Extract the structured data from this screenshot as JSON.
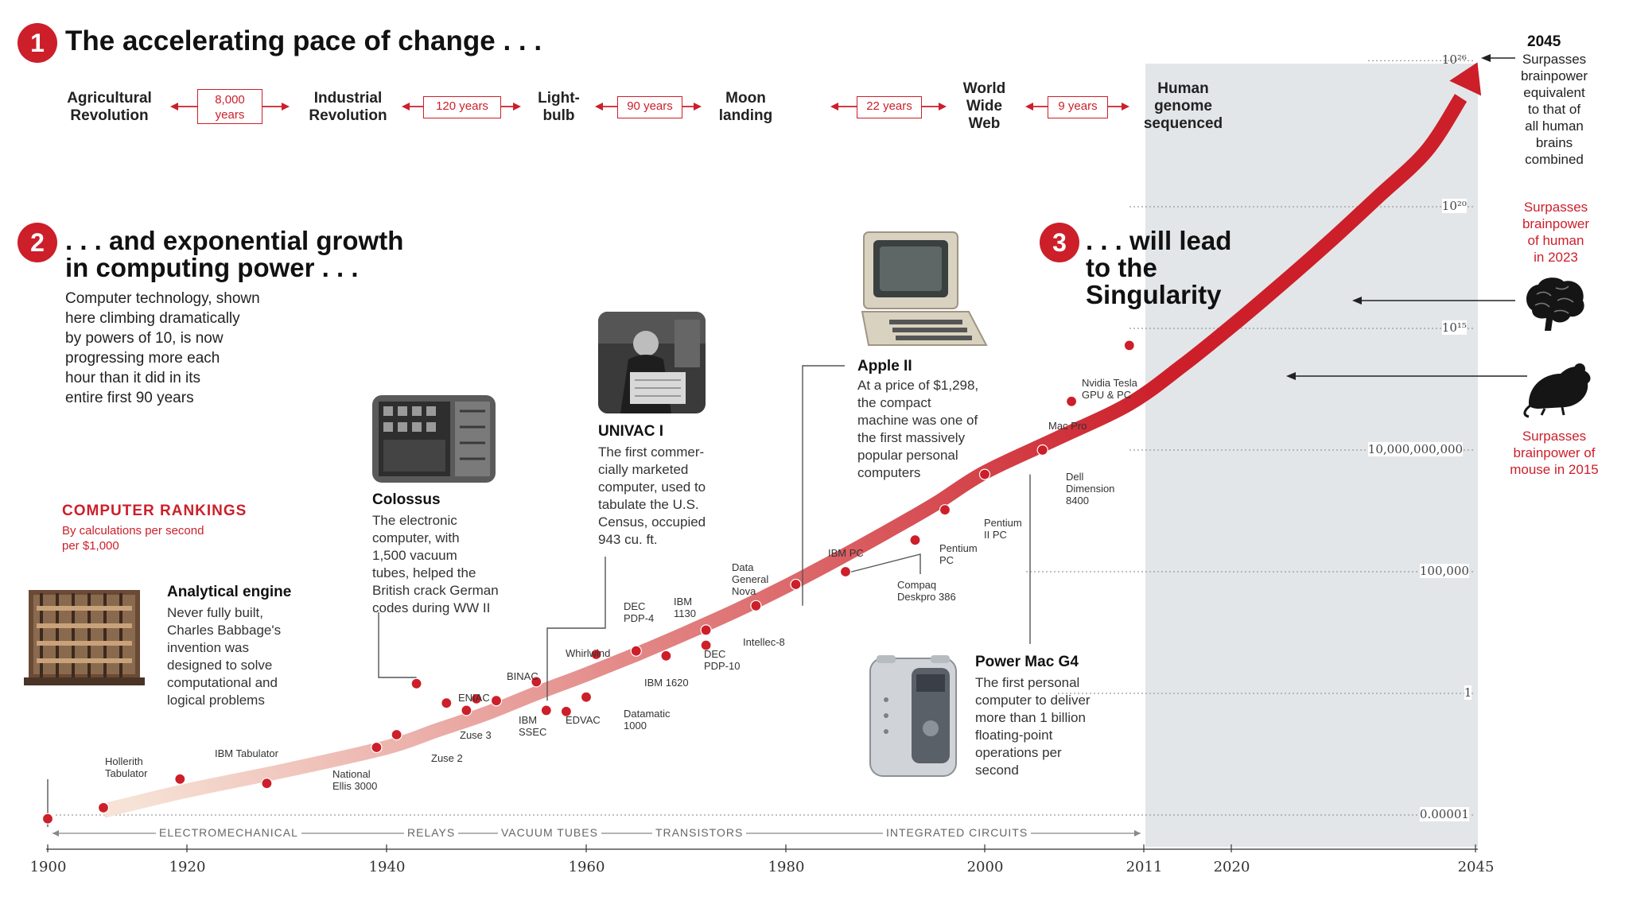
{
  "chart_data": {
    "type": "scatter",
    "title": "The accelerating pace of change ...",
    "xlabel": "",
    "ylabel": "By calculations per second per $1,000",
    "x_ticks": [
      "1900",
      "1920",
      "1940",
      "1960",
      "1980",
      "2000",
      "2011",
      "2020",
      "2045"
    ],
    "y_ticks": [
      {
        "label": "0.00001"
      },
      {
        "label": "1"
      },
      {
        "label": "100,000"
      },
      {
        "label": "10,000,000,000"
      },
      {
        "label": "10¹⁵"
      },
      {
        "label": "10²⁰"
      },
      {
        "label": "10²⁶"
      }
    ],
    "y_scale": "log",
    "ylim": [
      "0.00001",
      "1e26"
    ],
    "xlim": [
      1900,
      2045
    ],
    "grid": true,
    "points": [
      {
        "name": "",
        "year": 1900,
        "cps": 7e-06
      },
      {
        "name": "Hollerith Tabulator",
        "year": 1908,
        "cps": 2e-05
      },
      {
        "name": "IBM Tabulator",
        "year": 1919,
        "cps": 0.0003
      },
      {
        "name": "National Ellis 3000",
        "year": 1928,
        "cps": 0.0002
      },
      {
        "name": "Zuse 2",
        "year": 1939,
        "cps": 0.006
      },
      {
        "name": "Zuse 3",
        "year": 1941,
        "cps": 0.02
      },
      {
        "name": "Colossus",
        "year": 1943,
        "cps": 2.5
      },
      {
        "name": "ENIAC",
        "year": 1946,
        "cps": 0.4
      },
      {
        "name": "IBM SSEC",
        "year": 1948,
        "cps": 0.2
      },
      {
        "name": "BINAC",
        "year": 1949,
        "cps": 0.6
      },
      {
        "name": "UNIVAC I",
        "year": 1951,
        "cps": 0.5
      },
      {
        "name": "Whirlwind",
        "year": 1955,
        "cps": 3
      },
      {
        "name": "EDVAC",
        "year": 1956,
        "cps": 0.2
      },
      {
        "name": "Datamatic 1000",
        "year": 1958,
        "cps": 0.18
      },
      {
        "name": "IBM 1620",
        "year": 1960,
        "cps": 0.7
      },
      {
        "name": "DEC PDP-4",
        "year": 1961,
        "cps": 40
      },
      {
        "name": "IBM 1130",
        "year": 1965,
        "cps": 55
      },
      {
        "name": "DEC PDP-10",
        "year": 1968,
        "cps": 35
      },
      {
        "name": "Data General Nova",
        "year": 1972,
        "cps": 400
      },
      {
        "name": "Intellec-8",
        "year": 1972,
        "cps": 95
      },
      {
        "name": "Apple II",
        "year": 1977,
        "cps": 4000
      },
      {
        "name": "IBM PC",
        "year": 1981,
        "cps": 30000
      },
      {
        "name": "Compaq Deskpro 386",
        "year": 1986,
        "cps": 100000
      },
      {
        "name": "Pentium PC",
        "year": 1993,
        "cps": 2000000
      },
      {
        "name": "Pentium II PC",
        "year": 1996,
        "cps": 35000000
      },
      {
        "name": "Power Mac G4",
        "year": 2000,
        "cps": 1000000000
      },
      {
        "name": "Dell Dimension 8400",
        "year": 2004,
        "cps": 10000000000
      },
      {
        "name": "Mac Pro",
        "year": 2006,
        "cps": 1000000000000.0
      },
      {
        "name": "Nvidia Tesla GPU & PC",
        "year": 2010,
        "cps": 200000000000000.0
      }
    ],
    "labeled_points": [
      {
        "name": "Hollerith Tabulator",
        "lines": [
          "Hollerith",
          "Tabulator"
        ]
      },
      {
        "name": "IBM Tabulator",
        "lines": [
          "IBM Tabulator"
        ]
      },
      {
        "name": "National Ellis 3000",
        "lines": [
          "National",
          "Ellis 3000"
        ]
      },
      {
        "name": "Zuse 2",
        "lines": [
          "Zuse 2"
        ]
      },
      {
        "name": "Zuse 3",
        "lines": [
          "Zuse 3"
        ]
      },
      {
        "name": "ENIAC",
        "lines": [
          "ENIAC"
        ]
      },
      {
        "name": "IBM SSEC",
        "lines": [
          "IBM",
          "SSEC"
        ]
      },
      {
        "name": "BINAC",
        "lines": [
          "BINAC"
        ]
      },
      {
        "name": "Whirlwind",
        "lines": [
          "Whirlwind"
        ]
      },
      {
        "name": "EDVAC",
        "lines": [
          "EDVAC"
        ]
      },
      {
        "name": "Datamatic 1000",
        "lines": [
          "Datamatic",
          "1000"
        ]
      },
      {
        "name": "IBM 1620",
        "lines": [
          "IBM 1620"
        ]
      },
      {
        "name": "DEC PDP-4",
        "lines": [
          "DEC",
          "PDP-4"
        ]
      },
      {
        "name": "IBM 1130",
        "lines": [
          "IBM",
          "1130"
        ]
      },
      {
        "name": "DEC PDP-10",
        "lines": [
          "DEC",
          "PDP-10"
        ]
      },
      {
        "name": "Data General Nova",
        "lines": [
          "Data",
          "General",
          "Nova"
        ]
      },
      {
        "name": "Intellec-8",
        "lines": [
          "Intellec-8"
        ]
      },
      {
        "name": "IBM PC",
        "lines": [
          "IBM PC"
        ]
      },
      {
        "name": "Compaq Deskpro 386",
        "lines": [
          "Compaq",
          "Deskpro 386"
        ]
      },
      {
        "name": "Pentium PC",
        "lines": [
          "Pentium",
          "PC"
        ]
      },
      {
        "name": "Pentium II PC",
        "lines": [
          "Pentium",
          "II PC"
        ]
      },
      {
        "name": "Dell Dimension 8400",
        "lines": [
          "Dell",
          "Dimension",
          "8400"
        ]
      },
      {
        "name": "Mac Pro",
        "lines": [
          "Mac Pro"
        ]
      },
      {
        "name": "Nvidia Tesla GPU & PC",
        "lines": [
          "Nvidia Tesla",
          "GPU & PC"
        ]
      }
    ],
    "technology_eras": [
      "ELECTROMECHANICAL",
      "RELAYS",
      "VACUUM TUBES",
      "TRANSISTORS",
      "INTEGRATED CIRCUITS"
    ],
    "trend_colors": [
      "#f6e2d6",
      "#cc1f2a"
    ],
    "accent_color": "#cc1f2a"
  },
  "section1": {
    "number": "1",
    "title": "The accelerating pace of change . . .",
    "eras": [
      {
        "lines": [
          "Agricultural",
          "Revolution"
        ]
      },
      {
        "lines": [
          "Industrial",
          "Revolution"
        ]
      },
      {
        "lines": [
          "Light-",
          "bulb"
        ]
      },
      {
        "lines": [
          "Moon",
          "landing"
        ]
      },
      {
        "lines": [
          "World",
          "Wide",
          "Web"
        ]
      },
      {
        "lines": [
          "Human",
          "genome",
          "sequenced"
        ]
      }
    ],
    "gaps": [
      {
        "lines": [
          "8,000",
          "years"
        ]
      },
      {
        "lines": [
          "120 years"
        ]
      },
      {
        "lines": [
          "90 years"
        ]
      },
      {
        "lines": [
          "22 years"
        ]
      },
      {
        "lines": [
          "9 years"
        ]
      }
    ]
  },
  "section2": {
    "number": "2",
    "title_lines": [
      ". . . and exponential growth",
      "in computing power . . ."
    ],
    "body_lines": [
      "Computer technology, shown",
      "here climbing dramatically",
      "by powers of 10, is now",
      "progressing more each",
      "hour than it did in its",
      "entire first 90 years"
    ]
  },
  "section3": {
    "number": "3",
    "title_lines": [
      ". . . will lead",
      "to the",
      "Singularity"
    ]
  },
  "rankings": {
    "title": "COMPUTER RANKINGS",
    "subtitle_lines": [
      "By calculations per second",
      "per $1,000"
    ]
  },
  "callouts": {
    "analytical": {
      "title": "Analytical engine",
      "lines": [
        "Never fully built,",
        "Charles Babbage's",
        "invention was",
        "designed to solve",
        "computational and",
        "logical problems"
      ]
    },
    "colossus": {
      "title": "Colossus",
      "lines": [
        "The electronic",
        "computer, with",
        "1,500 vacuum",
        "tubes, helped the",
        "British crack German",
        "codes during WW II"
      ]
    },
    "univac": {
      "title": "UNIVAC I",
      "lines": [
        "The first commer-",
        "cially marketed",
        "computer, used to",
        "tabulate the U.S.",
        "Census, occupied",
        "943 cu. ft."
      ]
    },
    "apple": {
      "title": "Apple II",
      "lines": [
        "At a price of $1,298,",
        "the compact",
        "machine was one of",
        "the first massively",
        "popular personal",
        "computers"
      ]
    },
    "powermac": {
      "title": "Power Mac G4",
      "lines": [
        "The first personal",
        "computer to deliver",
        "more than 1 billion",
        "floating-point",
        "operations per",
        "second"
      ]
    }
  },
  "right_panel": {
    "year": "2045",
    "top_lines": [
      "Surpasses",
      "brainpower",
      "equivalent",
      "to that of",
      "all human",
      "brains",
      "combined"
    ],
    "human_lines": [
      "Surpasses",
      "brainpower",
      "of human",
      "in 2023"
    ],
    "mouse_lines": [
      "Surpasses",
      "brainpower of",
      "mouse in 2015"
    ],
    "brain_icon": "brain-icon",
    "mouse_icon": "mouse-icon"
  }
}
